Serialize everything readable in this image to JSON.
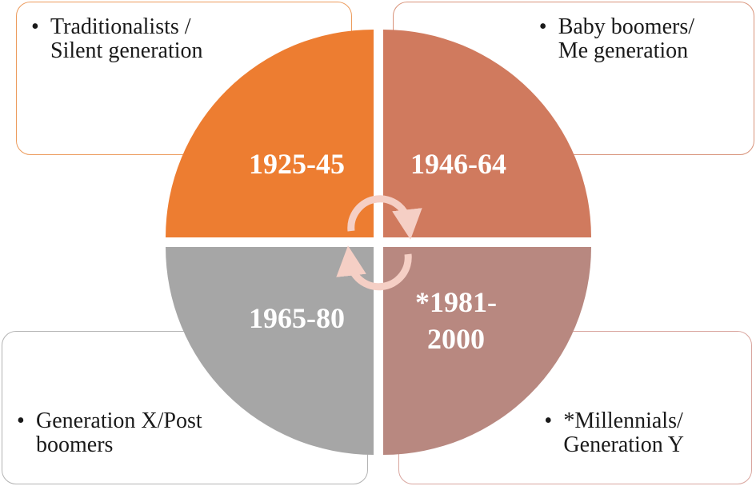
{
  "colors": {
    "q1": "#ed7d31",
    "q2": "#d07a5e",
    "q3": "#a6a6a6",
    "q4": "#b88880",
    "arrows": "#f5cfc5"
  },
  "cards": {
    "top_left": {
      "line1": "Traditionalists /",
      "line2": "Silent generation"
    },
    "top_right": {
      "line1": "Baby boomers/",
      "line2": "Me generation"
    },
    "bottom_left": {
      "line1": "Generation X/Post",
      "line2": "boomers"
    },
    "bottom_right": {
      "line1": "*Millennials/",
      "line2": "Generation Y"
    }
  },
  "quadrants": {
    "q1": {
      "label": "1925-45"
    },
    "q2": {
      "label": "1946-64"
    },
    "q3": {
      "label": "1965-80"
    },
    "q4": {
      "line1": "*1981-",
      "line2": "2000"
    }
  },
  "bullet": "•"
}
